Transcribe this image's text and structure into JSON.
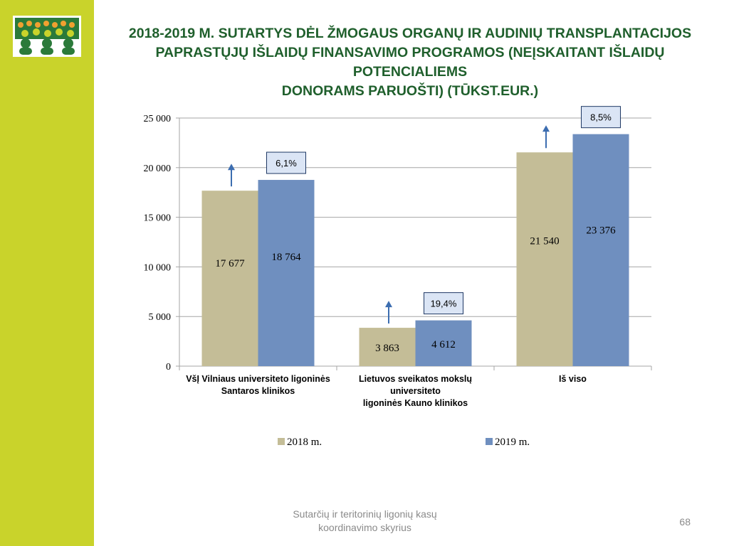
{
  "slide": {
    "title_lines": [
      "2018-2019 M. SUTARTYS DĖL ŽMOGAUS ORGANŲ IR AUDINIŲ TRANSPLANTACIJOS",
      "PAPRASTŲJŲ IŠLAIDŲ FINANSAVIMO PROGRAMOS (NEĮSKAITANT IŠLAIDŲ POTENCIALIEMS",
      "DONORAMS PARUOŠTI) (TŪKST.EUR.)"
    ],
    "footer_lines": [
      "Sutarčių ir teritorinių ligonių kasų",
      "koordinavimo skyrius"
    ],
    "page_number": "68"
  },
  "colors": {
    "sidebar": "#c9d32b",
    "title": "#1f5f2c",
    "logo_green": "#2b7a3a",
    "logo_orange": "#f0a030"
  },
  "chart_data": {
    "type": "bar",
    "categories": [
      [
        "VšĮ Vilniaus universiteto ligoninės",
        "Santaros klinikos"
      ],
      [
        "Lietuvos sveikatos mokslų",
        "universiteto",
        "ligoninės Kauno klinikos"
      ],
      [
        "Iš viso"
      ]
    ],
    "series": [
      {
        "name": "2018 m.",
        "values": [
          17677,
          3863,
          21540
        ],
        "labels": [
          "17 677",
          "3 863",
          "21 540"
        ],
        "color": "#c4bd97"
      },
      {
        "name": "2019 m.",
        "values": [
          18764,
          4612,
          23376
        ],
        "labels": [
          "18 764",
          "4 612",
          "23 376"
        ],
        "color": "#6f8fbf"
      }
    ],
    "change_labels": [
      "6,1%",
      "19,4%",
      "8,5%"
    ],
    "ylim": [
      0,
      25000
    ],
    "yticks": [
      0,
      5000,
      10000,
      15000,
      20000,
      25000
    ],
    "ytick_labels": [
      "0",
      "5 000",
      "10 000",
      "15 000",
      "20 000",
      "25 000"
    ],
    "grid": true,
    "legend_position": "bottom"
  }
}
